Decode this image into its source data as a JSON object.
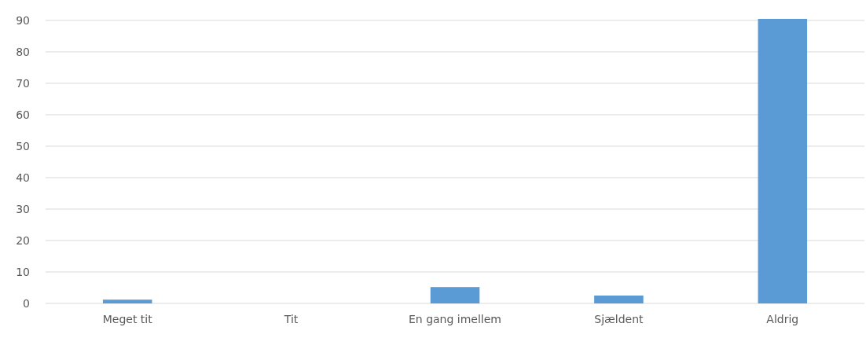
{
  "chart_data": {
    "type": "bar",
    "categories": [
      "Meget tit",
      "Tit",
      "En gang imellem",
      "Sjældent",
      "Aldrig"
    ],
    "values": [
      1.2,
      0,
      5.2,
      2.5,
      90.5
    ],
    "color": "#5b9bd5",
    "ylim": [
      0,
      91
    ],
    "yticks": [
      0,
      10,
      20,
      30,
      40,
      50,
      60,
      70,
      80,
      90
    ],
    "grid": "y"
  }
}
